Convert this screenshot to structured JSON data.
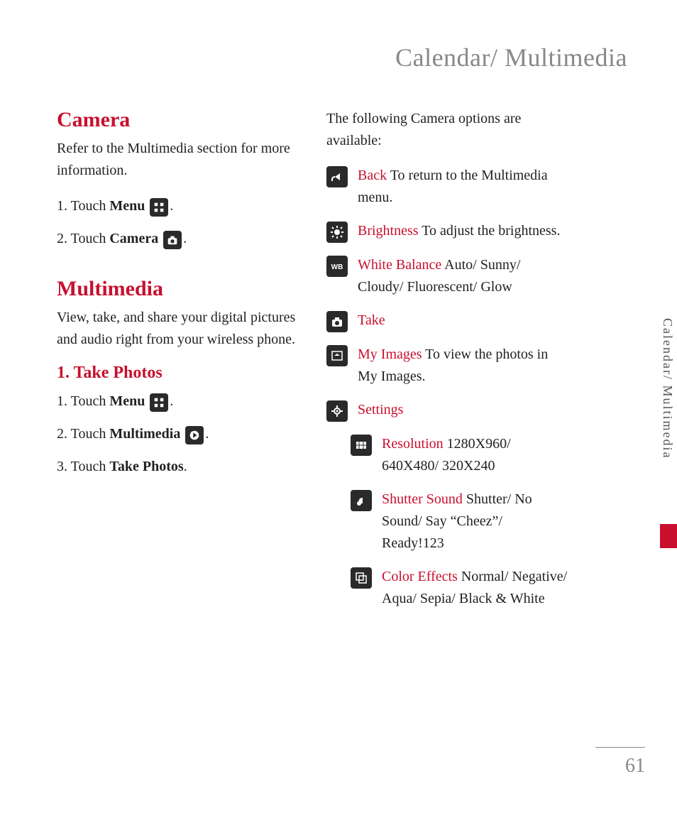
{
  "page": {
    "title": "Calendar/ Multimedia",
    "number": "61",
    "side_tab": "Calendar/ Multimedia"
  },
  "colors": {
    "accent": "#c8102e",
    "title_gray": "#888888",
    "text": "#222222",
    "icon_bg": "#2a2a2a",
    "icon_fg": "#ffffff"
  },
  "left_column": {
    "camera": {
      "heading": "Camera",
      "body": "Refer to the Multimedia section for more information.",
      "steps": [
        {
          "prefix": "1. Touch ",
          "bold": "Menu",
          "icon": "grid",
          "suffix": "."
        },
        {
          "prefix": "2. Touch ",
          "bold": "Camera",
          "icon": "camera",
          "suffix": "."
        }
      ]
    },
    "multimedia": {
      "heading": "Multimedia",
      "body": "View, take, and share your digital pictures and audio right from your wireless phone.",
      "sub": {
        "heading": "1. Take Photos",
        "steps": [
          {
            "prefix": "1. Touch ",
            "bold": "Menu",
            "icon": "grid",
            "suffix": "."
          },
          {
            "prefix": "2. Touch ",
            "bold": "Multimedia",
            "icon": "play",
            "suffix": "."
          },
          {
            "prefix": "3. Touch ",
            "bold": "Take Photos",
            "icon": null,
            "suffix": "."
          }
        ]
      }
    }
  },
  "right_column": {
    "intro": "The following Camera options are available:",
    "options": [
      {
        "icon": "back",
        "label": "Back",
        "text": " To return to the Multimedia menu.",
        "sub": false
      },
      {
        "icon": "brightness",
        "label": "Brightness",
        "text": " To adjust the brightness.",
        "sub": false
      },
      {
        "icon": "wb",
        "label": "White Balance",
        "text": "  Auto/ Sunny/ Cloudy/ Fluorescent/ Glow",
        "sub": false
      },
      {
        "icon": "camera",
        "label": "Take",
        "text": "",
        "sub": false
      },
      {
        "icon": "image",
        "label": "My Images",
        "text": "  To view the photos in My Images.",
        "sub": false
      },
      {
        "icon": "settings",
        "label": "Settings",
        "text": "",
        "sub": false
      },
      {
        "icon": "resolution",
        "label": "Resolution",
        "text": "  1280X960/ 640X480/ 320X240",
        "sub": true
      },
      {
        "icon": "sound",
        "label": "Shutter Sound",
        "text": "  Shutter/ No Sound/ Say “Cheez”/ Ready!123",
        "sub": true
      },
      {
        "icon": "effects",
        "label": "Color Effects",
        "text": "  Normal/ Negative/ Aqua/ Sepia/ Black & White",
        "sub": true
      }
    ]
  }
}
